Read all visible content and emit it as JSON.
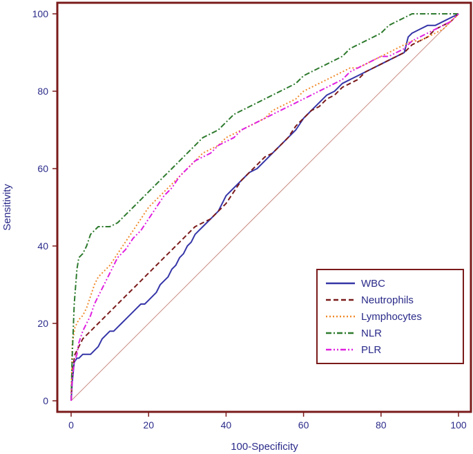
{
  "chart_data": {
    "type": "line",
    "title": "",
    "xlabel": "100-Specificity",
    "ylabel": "Sensitivity",
    "xlim": [
      0,
      100
    ],
    "ylim": [
      0,
      100
    ],
    "xticks": [
      0,
      20,
      40,
      60,
      80,
      100
    ],
    "yticks": [
      0,
      20,
      40,
      60,
      80,
      100
    ],
    "grid": false,
    "legend_position": "bottom-right",
    "colors": {
      "frame": "#7a1a1a",
      "diagonal": "#c98a80",
      "text": "#2a2a8a"
    },
    "diagonal": {
      "x": [
        0,
        100
      ],
      "y": [
        0,
        100
      ]
    },
    "series": [
      {
        "name": "WBC",
        "color": "#3535a8",
        "dash": "solid",
        "x": [
          0,
          0.3,
          0.8,
          1.5,
          2,
          3,
          4,
          5,
          6,
          7,
          8,
          9,
          10,
          11,
          12,
          13,
          14,
          15,
          16,
          17,
          18,
          19,
          20,
          21,
          22,
          23,
          24,
          25,
          26,
          27,
          28,
          29,
          30,
          31,
          32,
          33,
          34,
          35,
          36,
          37,
          38,
          39,
          40,
          42,
          44,
          46,
          48,
          50,
          52,
          54,
          56,
          58,
          60,
          62,
          64,
          66,
          68,
          70,
          72,
          74,
          76,
          78,
          80,
          82,
          84,
          86,
          86.5,
          87,
          88,
          90,
          92,
          94,
          96,
          98,
          100
        ],
        "y": [
          0,
          5,
          10,
          11,
          11,
          12,
          12,
          12,
          13,
          14,
          16,
          17,
          18,
          18,
          19,
          20,
          21,
          22,
          23,
          24,
          25,
          25,
          26,
          27,
          28,
          30,
          31,
          32,
          34,
          35,
          37,
          38,
          40,
          41,
          43,
          44,
          45,
          46,
          47,
          48,
          49,
          51,
          53,
          55,
          57,
          59,
          60,
          62,
          64,
          66,
          68,
          70,
          73,
          75,
          77,
          79,
          80,
          82,
          83,
          84,
          85,
          86,
          87,
          88,
          89,
          90,
          92,
          94,
          95,
          96,
          97,
          97,
          98,
          99,
          100
        ]
      },
      {
        "name": "Neutrophils",
        "color": "#7a1a1a",
        "dash": "7,4",
        "x": [
          0,
          0.3,
          1,
          2,
          3,
          4,
          5,
          6,
          7,
          8,
          10,
          12,
          14,
          16,
          18,
          20,
          22,
          24,
          26,
          28,
          30,
          32,
          34,
          36,
          38,
          40,
          42,
          44,
          46,
          48,
          50,
          52,
          54,
          56,
          58,
          60,
          62,
          64,
          66,
          68,
          70,
          72,
          74,
          76,
          78,
          80,
          82,
          84,
          86,
          88,
          90,
          92,
          94,
          96,
          98,
          100
        ],
        "y": [
          0,
          8,
          12,
          14,
          16,
          17,
          18,
          19,
          20,
          21,
          23,
          25,
          27,
          29,
          31,
          33,
          35,
          37,
          39,
          41,
          43,
          45,
          46,
          47,
          49,
          51,
          54,
          57,
          59,
          61,
          63,
          64,
          66,
          68,
          71,
          73,
          75,
          76,
          78,
          79,
          81,
          82,
          83,
          85,
          86,
          87,
          88,
          89,
          90,
          92,
          93,
          94,
          96,
          97,
          98,
          100
        ]
      },
      {
        "name": "Lymphocytes",
        "color": "#f08a2a",
        "dash": "2,3",
        "x": [
          0,
          0.3,
          1,
          2,
          3,
          4,
          5,
          6,
          7,
          8,
          10,
          12,
          14,
          16,
          18,
          20,
          22,
          24,
          26,
          28,
          30,
          32,
          34,
          36,
          38,
          40,
          42,
          44,
          46,
          48,
          50,
          52,
          54,
          56,
          58,
          60,
          62,
          64,
          66,
          68,
          70,
          72,
          74,
          76,
          78,
          80,
          82,
          84,
          86,
          88,
          90,
          92,
          94,
          96,
          98,
          100
        ],
        "y": [
          0,
          15,
          19,
          21,
          22,
          24,
          27,
          30,
          32,
          33,
          35,
          38,
          41,
          44,
          47,
          50,
          52,
          54,
          56,
          58,
          60,
          62,
          64,
          65,
          66,
          68,
          69,
          70,
          71,
          72,
          73,
          75,
          76,
          77,
          78,
          80,
          81,
          82,
          83,
          84,
          85,
          86,
          86,
          87,
          88,
          89,
          90,
          91,
          92,
          93,
          93,
          94,
          95,
          96,
          98,
          100
        ]
      },
      {
        "name": "NLR",
        "color": "#2e7a2e",
        "dash": "8,3,2,3",
        "x": [
          0,
          0.3,
          0.8,
          1.5,
          2,
          3,
          4,
          5,
          6,
          7,
          8,
          10,
          12,
          14,
          16,
          18,
          20,
          22,
          24,
          26,
          28,
          30,
          32,
          34,
          36,
          38,
          40,
          42,
          44,
          46,
          48,
          50,
          52,
          54,
          56,
          58,
          60,
          62,
          64,
          66,
          68,
          70,
          72,
          74,
          76,
          78,
          80,
          82,
          84,
          86,
          88,
          90,
          92,
          94,
          96,
          98,
          100
        ],
        "y": [
          0,
          12,
          25,
          34,
          37,
          38,
          40,
          43,
          44,
          45,
          45,
          45,
          46,
          48,
          50,
          52,
          54,
          56,
          58,
          60,
          62,
          64,
          66,
          68,
          69,
          70,
          72,
          74,
          75,
          76,
          77,
          78,
          79,
          80,
          81,
          82,
          84,
          85,
          86,
          87,
          88,
          89,
          91,
          92,
          93,
          94,
          95,
          97,
          98,
          99,
          100,
          100,
          100,
          100,
          100,
          100,
          100
        ]
      },
      {
        "name": "PLR",
        "color": "#e020e0",
        "dash": "8,3,2,3,2,3",
        "x": [
          0,
          0.3,
          0.8,
          1.5,
          2,
          3,
          4,
          5,
          6,
          7,
          8,
          10,
          12,
          14,
          16,
          18,
          20,
          22,
          24,
          26,
          28,
          30,
          32,
          34,
          36,
          38,
          40,
          42,
          44,
          46,
          48,
          50,
          52,
          54,
          56,
          58,
          60,
          62,
          64,
          66,
          68,
          70,
          72,
          74,
          76,
          78,
          80,
          82,
          84,
          86,
          88,
          90,
          92,
          94,
          96,
          98,
          100
        ],
        "y": [
          0,
          6,
          10,
          12,
          15,
          18,
          20,
          22,
          25,
          27,
          29,
          33,
          37,
          39,
          42,
          44,
          47,
          50,
          53,
          55,
          58,
          60,
          62,
          63,
          64,
          66,
          67,
          68,
          70,
          71,
          72,
          73,
          74,
          75,
          76,
          77,
          78,
          79,
          80,
          81,
          82,
          83,
          85,
          86,
          87,
          88,
          89,
          89,
          90,
          91,
          93,
          94,
          95,
          96,
          97,
          98,
          100
        ]
      }
    ]
  }
}
